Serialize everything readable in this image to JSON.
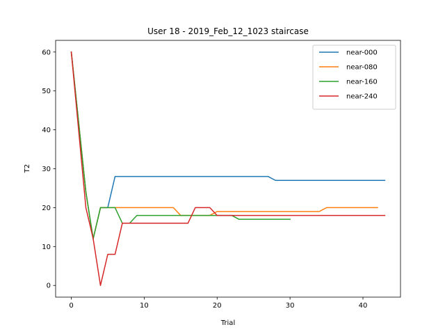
{
  "chart_data": {
    "type": "line",
    "title": "User 18 - 2019_Feb_12_1023 staircase",
    "xlabel": "Trial",
    "ylabel": "T2",
    "xlim": [
      -2.15,
      45.15
    ],
    "ylim": [
      -3,
      63
    ],
    "xticks": [
      0,
      10,
      20,
      30,
      40
    ],
    "yticks": [
      0,
      10,
      20,
      30,
      40,
      50,
      60
    ],
    "grid": false,
    "legend_position": "top-right",
    "series": [
      {
        "name": "near-000",
        "color": "#1f77b4",
        "x": [
          0,
          1,
          2,
          3,
          4,
          5,
          6,
          7,
          8,
          9,
          10,
          11,
          12,
          13,
          14,
          15,
          16,
          17,
          18,
          19,
          20,
          21,
          22,
          23,
          24,
          25,
          26,
          27,
          28,
          29,
          30,
          31,
          32,
          33,
          34,
          35,
          36,
          37,
          38,
          39,
          40,
          41,
          42,
          43
        ],
        "y": [
          60,
          42,
          24,
          12,
          20,
          20,
          28,
          28,
          28,
          28,
          28,
          28,
          28,
          28,
          28,
          28,
          28,
          28,
          28,
          28,
          28,
          28,
          28,
          28,
          28,
          28,
          28,
          28,
          27,
          27,
          27,
          27,
          27,
          27,
          27,
          27,
          27,
          27,
          27,
          27,
          27,
          27,
          27,
          27
        ]
      },
      {
        "name": "near-080",
        "color": "#ff7f0e",
        "x": [
          0,
          1,
          2,
          3,
          4,
          5,
          6,
          7,
          8,
          9,
          10,
          11,
          12,
          13,
          14,
          15,
          16,
          17,
          18,
          19,
          20,
          21,
          22,
          23,
          24,
          25,
          26,
          27,
          28,
          29,
          30,
          31,
          32,
          33,
          34,
          35,
          36,
          37,
          38,
          39,
          40,
          41,
          42
        ],
        "y": [
          60,
          42,
          24,
          12,
          20,
          20,
          20,
          20,
          20,
          20,
          20,
          20,
          20,
          20,
          20,
          18,
          18,
          18,
          18,
          18,
          19,
          19,
          19,
          19,
          19,
          19,
          19,
          19,
          19,
          19,
          19,
          19,
          19,
          19,
          19,
          20,
          20,
          20,
          20,
          20,
          20,
          20,
          20
        ]
      },
      {
        "name": "near-160",
        "color": "#2ca02c",
        "x": [
          0,
          1,
          2,
          3,
          4,
          5,
          6,
          7,
          8,
          9,
          10,
          11,
          12,
          13,
          14,
          15,
          16,
          17,
          18,
          19,
          20,
          21,
          22,
          23,
          24,
          25,
          26,
          27,
          28,
          29,
          30
        ],
        "y": [
          60,
          42,
          24,
          12,
          20,
          20,
          20,
          16,
          16,
          18,
          18,
          18,
          18,
          18,
          18,
          18,
          18,
          18,
          18,
          18,
          18,
          18,
          18,
          17,
          17,
          17,
          17,
          17,
          17,
          17,
          17
        ]
      },
      {
        "name": "near-240",
        "color": "#d62728",
        "x": [
          0,
          1,
          2,
          3,
          4,
          5,
          6,
          7,
          8,
          9,
          10,
          11,
          12,
          13,
          14,
          15,
          16,
          17,
          18,
          19,
          20,
          21,
          22,
          23,
          24,
          25,
          26,
          27,
          28,
          29,
          30,
          31,
          32,
          33,
          34,
          35,
          36,
          37,
          38,
          39,
          40,
          41,
          42,
          43
        ],
        "y": [
          60,
          40,
          20,
          12,
          0,
          8,
          8,
          16,
          16,
          16,
          16,
          16,
          16,
          16,
          16,
          16,
          16,
          20,
          20,
          20,
          18,
          18,
          18,
          18,
          18,
          18,
          18,
          18,
          18,
          18,
          18,
          18,
          18,
          18,
          18,
          18,
          18,
          18,
          18,
          18,
          18,
          18,
          18,
          18
        ]
      }
    ]
  }
}
